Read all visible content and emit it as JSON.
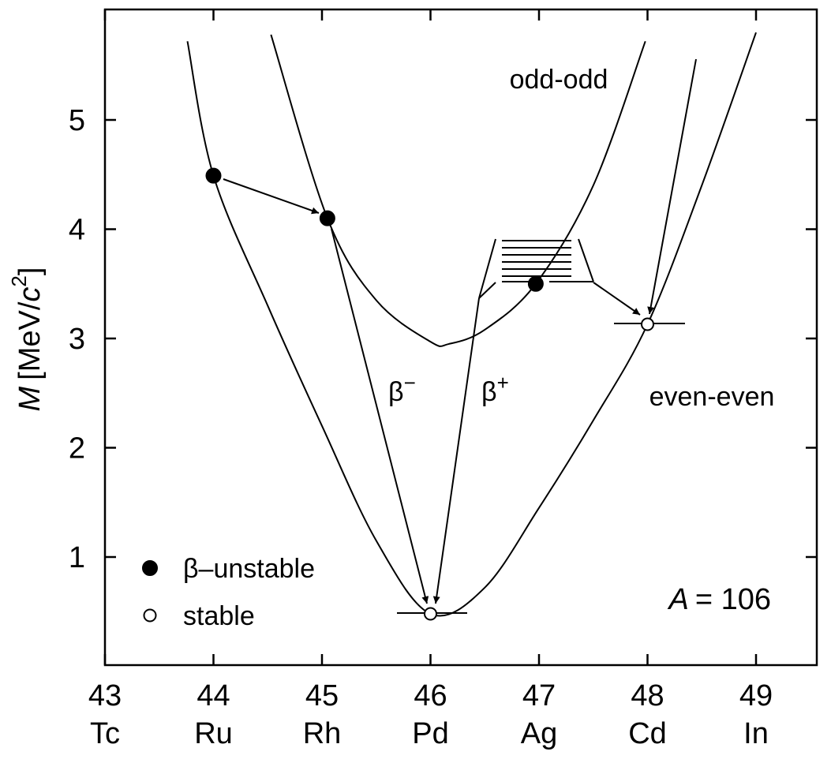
{
  "chart_data": {
    "type": "line",
    "color": "#000000",
    "xlim": [
      43,
      49.56
    ],
    "ylim": [
      0,
      6
    ],
    "xticks": [
      43,
      44,
      45,
      46,
      47,
      48,
      49
    ],
    "elements": [
      "Tc",
      "Ru",
      "Rh",
      "Pd",
      "Ag",
      "Cd",
      "In"
    ],
    "yticks": [
      1,
      2,
      3,
      4,
      5
    ],
    "ylabel_parts": [
      "M",
      "[MeV/",
      "c",
      "2",
      "]"
    ],
    "beta_minus": [
      "β",
      "−"
    ],
    "beta_plus": [
      "β",
      "+"
    ],
    "mass_label": [
      "A",
      "= 106"
    ],
    "series": [
      {
        "name": "odd-odd",
        "style": "curve",
        "x": [
          44.53,
          45.05,
          45.5,
          46.0,
          46.17,
          46.5,
          46.97,
          47.5,
          47.98
        ],
        "values": [
          5.78,
          4.1,
          3.35,
          2.97,
          2.95,
          3.08,
          3.5,
          4.4,
          5.72
        ]
      },
      {
        "name": "even-even",
        "style": "curve",
        "x": [
          43.76,
          44.0,
          44.5,
          45.0,
          45.5,
          46.0,
          46.5,
          47.0,
          47.5,
          48.0,
          48.5,
          49.0
        ],
        "values": [
          5.72,
          4.49,
          3.3,
          2.2,
          1.15,
          0.48,
          0.72,
          1.45,
          2.25,
          3.13,
          4.4,
          5.8
        ]
      },
      {
        "name": "β–unstable",
        "style": "marker",
        "filled": true,
        "x": [
          44.0,
          45.05,
          46.97
        ],
        "values": [
          4.49,
          4.1,
          3.5
        ]
      },
      {
        "name": "stable",
        "style": "marker",
        "filled": false,
        "x": [
          46.0,
          48.0
        ],
        "values": [
          0.48,
          3.13
        ]
      }
    ]
  }
}
